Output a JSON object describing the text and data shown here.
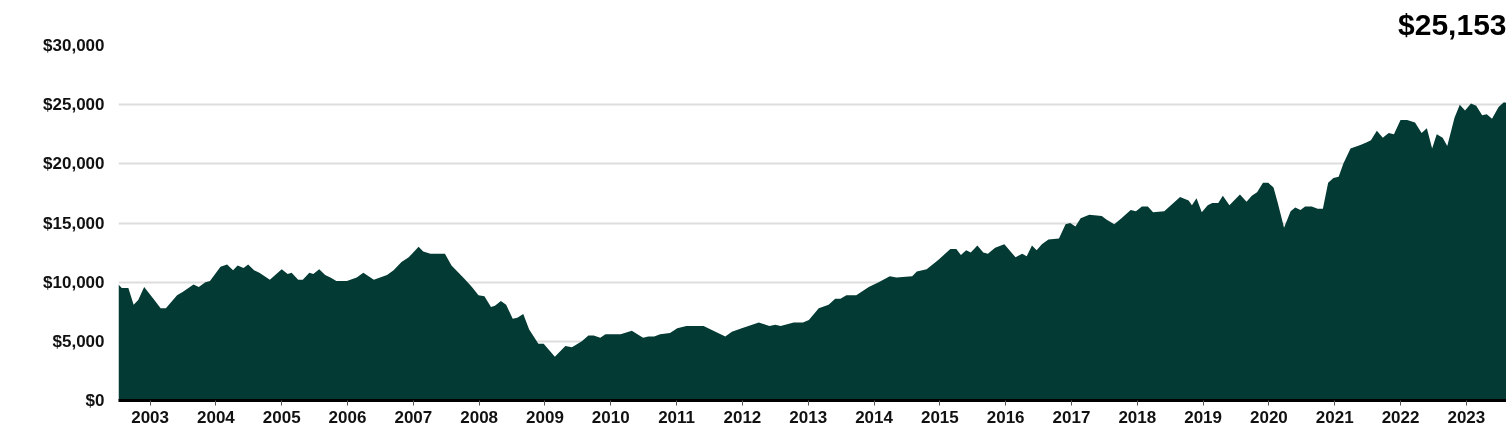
{
  "chart_data": {
    "type": "area",
    "x": [
      2002.52,
      2002.57,
      2002.67,
      2002.75,
      2002.82,
      2002.91,
      2003.05,
      2003.16,
      2003.24,
      2003.41,
      2003.5,
      2003.66,
      2003.74,
      2003.84,
      2003.91,
      2004.07,
      2004.17,
      2004.26,
      2004.33,
      2004.42,
      2004.49,
      2004.58,
      2004.66,
      2004.82,
      2005.0,
      2005.09,
      2005.15,
      2005.25,
      2005.32,
      2005.42,
      2005.48,
      2005.57,
      2005.66,
      2005.74,
      2005.83,
      2005.99,
      2006.14,
      2006.24,
      2006.4,
      2006.6,
      2006.7,
      2006.82,
      2006.93,
      2007.08,
      2007.15,
      2007.26,
      2007.48,
      2007.58,
      2007.79,
      2007.89,
      2007.99,
      2008.08,
      2008.18,
      2008.24,
      2008.33,
      2008.41,
      2008.51,
      2008.58,
      2008.67,
      2008.76,
      2008.9,
      2008.98,
      2009.15,
      2009.31,
      2009.41,
      2009.56,
      2009.66,
      2009.74,
      2009.84,
      2009.92,
      2010.15,
      2010.32,
      2010.49,
      2010.57,
      2010.66,
      2010.75,
      2010.9,
      2011.01,
      2011.15,
      2011.41,
      2011.59,
      2011.74,
      2011.84,
      2011.99,
      2012.25,
      2012.41,
      2012.5,
      2012.58,
      2012.78,
      2012.92,
      2013.01,
      2013.16,
      2013.31,
      2013.41,
      2013.49,
      2013.58,
      2013.73,
      2013.92,
      2014.07,
      2014.24,
      2014.34,
      2014.58,
      2014.65,
      2014.8,
      2014.98,
      2015.16,
      2015.25,
      2015.32,
      2015.4,
      2015.47,
      2015.57,
      2015.66,
      2015.73,
      2015.84,
      2015.98,
      2016.15,
      2016.25,
      2016.32,
      2016.4,
      2016.47,
      2016.55,
      2016.65,
      2016.81,
      2016.91,
      2016.98,
      2017.06,
      2017.14,
      2017.27,
      2017.46,
      2017.53,
      2017.65,
      2017.76,
      2017.9,
      2017.98,
      2018.07,
      2018.16,
      2018.24,
      2018.41,
      2018.65,
      2018.78,
      2018.83,
      2018.9,
      2018.98,
      2019.07,
      2019.14,
      2019.23,
      2019.3,
      2019.4,
      2019.56,
      2019.66,
      2019.74,
      2019.82,
      2019.91,
      2019.99,
      2020.07,
      2020.13,
      2020.23,
      2020.33,
      2020.4,
      2020.48,
      2020.55,
      2020.65,
      2020.74,
      2020.82,
      2020.9,
      2020.98,
      2021.06,
      2021.13,
      2021.24,
      2021.39,
      2021.48,
      2021.55,
      2021.64,
      2021.73,
      2021.82,
      2021.9,
      2022.0,
      2022.1,
      2022.22,
      2022.32,
      2022.4,
      2022.48,
      2022.55,
      2022.64,
      2022.71,
      2022.82,
      2022.9,
      2022.98,
      2023.07,
      2023.15,
      2023.24,
      2023.31,
      2023.39,
      2023.49,
      2023.57,
      2023.61
    ],
    "series": [
      {
        "color": "#033a33",
        "values": [
          9800,
          9500,
          9500,
          8100,
          8500,
          9600,
          8600,
          7800,
          7800,
          8900,
          9200,
          9800,
          9600,
          10000,
          10100,
          11300,
          11500,
          11000,
          11400,
          11200,
          11500,
          11000,
          10800,
          10200,
          11100,
          10700,
          10800,
          10200,
          10200,
          10800,
          10700,
          11100,
          10600,
          10400,
          10100,
          10100,
          10400,
          10800,
          10200,
          10600,
          11000,
          11700,
          12100,
          13000,
          12600,
          12400,
          12400,
          11400,
          10200,
          9600,
          8900,
          8800,
          7900,
          8000,
          8400,
          8100,
          6900,
          7000,
          7300,
          6000,
          4800,
          4800,
          3700,
          4600,
          4500,
          5000,
          5500,
          5500,
          5300,
          5600,
          5600,
          5900,
          5300,
          5400,
          5400,
          5600,
          5700,
          6100,
          6300,
          6300,
          5800,
          5400,
          5800,
          6100,
          6600,
          6300,
          6400,
          6300,
          6600,
          6600,
          6800,
          7800,
          8100,
          8600,
          8600,
          8900,
          8900,
          9600,
          10000,
          10500,
          10400,
          10500,
          10900,
          11100,
          11900,
          12800,
          12800,
          12300,
          12700,
          12500,
          13100,
          12500,
          12400,
          12900,
          13200,
          12100,
          12400,
          12200,
          13100,
          12700,
          13200,
          13600,
          13700,
          14900,
          15000,
          14700,
          15400,
          15700,
          15600,
          15300,
          14900,
          15400,
          16100,
          16000,
          16400,
          16400,
          15900,
          16000,
          17200,
          16900,
          16500,
          17100,
          15900,
          16500,
          16700,
          16700,
          17300,
          16500,
          17400,
          16800,
          17300,
          17600,
          18400,
          18400,
          18000,
          16800,
          14600,
          16000,
          16300,
          16100,
          16400,
          16400,
          16200,
          16200,
          18400,
          18800,
          18900,
          20000,
          21300,
          21600,
          21800,
          22000,
          22800,
          22200,
          22600,
          22500,
          23700,
          23700,
          23500,
          22600,
          23000,
          21300,
          22500,
          22200,
          21500,
          23900,
          25000,
          24500,
          25100,
          24900,
          24100,
          24200,
          23800,
          24800,
          25200,
          25153
        ]
      }
    ],
    "xlim": [
      2002.52,
      2023.61
    ],
    "xticks": [
      2003,
      2004,
      2005,
      2006,
      2007,
      2008,
      2009,
      2010,
      2011,
      2012,
      2013,
      2014,
      2015,
      2016,
      2017,
      2018,
      2019,
      2020,
      2021,
      2022,
      2023
    ],
    "ylim": [
      0,
      30000
    ],
    "yticks": [
      {
        "value": 0,
        "label": "$0"
      },
      {
        "value": 5000,
        "label": "$5,000"
      },
      {
        "value": 10000,
        "label": "$10,000"
      },
      {
        "value": 15000,
        "label": "$15,000"
      },
      {
        "value": 20000,
        "label": "$20,000"
      },
      {
        "value": 25000,
        "label": "$25,000"
      },
      {
        "value": 30000,
        "label": "$30,000"
      }
    ],
    "grid": "y",
    "annotations": [
      "$25,153"
    ]
  }
}
